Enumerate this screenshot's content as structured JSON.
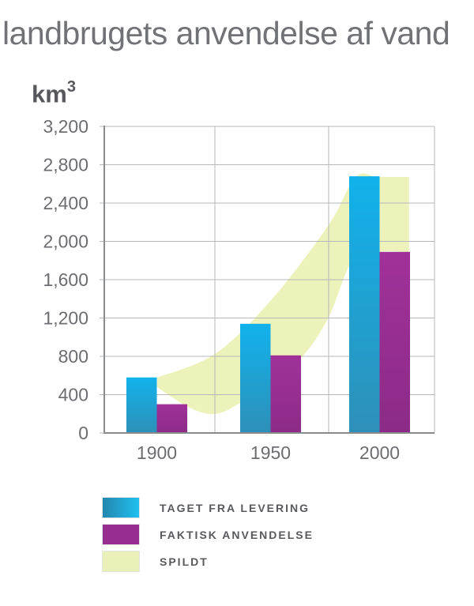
{
  "title": "landbrugets anvendelse af vand",
  "unit": {
    "base": "km",
    "exponent": "3"
  },
  "colors": {
    "blue_top": "#11b2ec",
    "blue_bottom": "#2e90b8",
    "purple_top": "#a03199",
    "purple_bottom": "#8c2b87",
    "band": "#ecf2ba",
    "grid": "#b6b7b9",
    "axis": "#8a8b8d",
    "tick_text": "#6c6d70",
    "legend_blue_left": "#2387ae",
    "legend_blue_right": "#1fc0f0",
    "legend_purple": "#962d8f",
    "legend_band": "#eaf1b8"
  },
  "chart_data": {
    "type": "bar+area",
    "title": "landbrugets anvendelse af vand",
    "ylabel": "km³",
    "categories": [
      "1900",
      "1950",
      "2000"
    ],
    "series": [
      {
        "name": "TAGET FRA LEVERING",
        "type": "bar",
        "values": [
          580,
          1140,
          2680
        ]
      },
      {
        "name": "FAKTISK ANVENDELSE",
        "type": "bar",
        "values": [
          300,
          810,
          1890
        ]
      },
      {
        "name": "SPILDT",
        "type": "area-band",
        "values": [
          280,
          330,
          790
        ],
        "top_edge": [
          [
            0.16,
            577
          ],
          [
            0.335,
            825
          ],
          [
            0.505,
            1386
          ],
          [
            0.679,
            2169
          ],
          [
            0.761,
            2672
          ],
          [
            0.83,
            2672
          ],
          [
            0.923,
            2672
          ]
        ],
        "bottom_edge": [
          [
            0.16,
            478
          ],
          [
            0.258,
            264
          ],
          [
            0.335,
            198
          ],
          [
            0.411,
            313
          ],
          [
            0.505,
            561
          ],
          [
            0.598,
            792
          ],
          [
            0.679,
            1204
          ],
          [
            0.751,
            1798
          ],
          [
            0.83,
            1889
          ],
          [
            0.923,
            1889
          ]
        ]
      }
    ],
    "ylim": [
      0,
      3200
    ],
    "y_tick_step": 400,
    "y_tick_labels": [
      "0",
      "400",
      "800",
      "1,200",
      "1,600",
      "2,000",
      "2,400",
      "2,800",
      "3,200"
    ],
    "grid": true,
    "legend_position": "bottom"
  },
  "legend": {
    "items": [
      {
        "label": "TAGET FRA LEVERING",
        "swatch": "blue-gradient"
      },
      {
        "label": "FAKTISK ANVENDELSE",
        "swatch": "purple"
      },
      {
        "label": "SPILDT",
        "swatch": "pale-green"
      }
    ]
  }
}
